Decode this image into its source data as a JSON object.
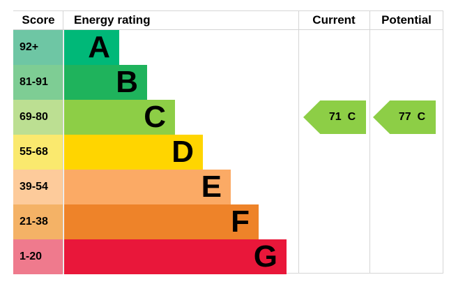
{
  "header": {
    "score": "Score",
    "energy_rating": "Energy rating",
    "current": "Current",
    "potential": "Potential"
  },
  "chart_data": {
    "type": "bar",
    "chart_kind": "epc-energy-rating-chart",
    "title": "Energy rating",
    "columns": [
      "Score",
      "Energy rating",
      "Current",
      "Potential"
    ],
    "bands": [
      {
        "letter": "A",
        "score_range": "92+",
        "bar_color": "#00b878",
        "score_tint": "#6ec6a4"
      },
      {
        "letter": "B",
        "score_range": "81-91",
        "bar_color": "#1fb35c",
        "score_tint": "#7ecd94"
      },
      {
        "letter": "C",
        "score_range": "69-80",
        "bar_color": "#8dce46",
        "score_tint": "#bcdf92"
      },
      {
        "letter": "D",
        "score_range": "55-68",
        "bar_color": "#ffd500",
        "score_tint": "#fae96e"
      },
      {
        "letter": "E",
        "score_range": "39-54",
        "bar_color": "#fbaa65",
        "score_tint": "#fdcb9b"
      },
      {
        "letter": "F",
        "score_range": "21-38",
        "bar_color": "#ee8329",
        "score_tint": "#f4b266"
      },
      {
        "letter": "G",
        "score_range": "1-20",
        "bar_color": "#e9173a",
        "score_tint": "#ef7a8d"
      }
    ],
    "current": {
      "value": "71",
      "band": "C",
      "band_index": 2,
      "arrow_color": "#8dce46",
      "label": "71 C"
    },
    "potential": {
      "value": "77",
      "band": "C",
      "band_index": 2,
      "arrow_color": "#8dce46",
      "label": "77 C"
    }
  },
  "style": {
    "gridline_color": "#d5d5d5"
  }
}
